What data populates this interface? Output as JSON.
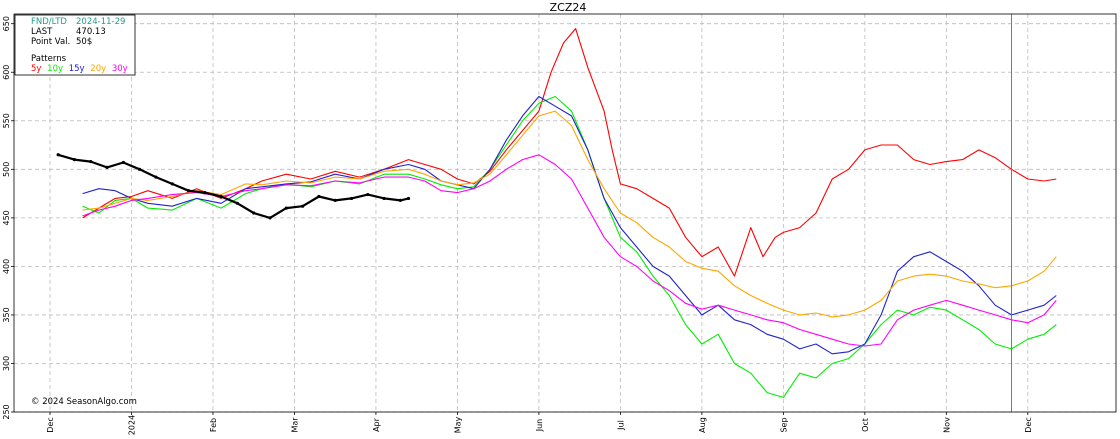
{
  "chart_data": {
    "type": "line",
    "title": "ZCZ24",
    "ylim": [
      250,
      660
    ],
    "yticks": [
      250,
      300,
      350,
      400,
      450,
      500,
      550,
      600,
      650
    ],
    "x_months": [
      "Dec",
      "2024",
      "Feb",
      "Mar",
      "Apr",
      "May",
      "Jun",
      "Jul",
      "Aug",
      "Sep",
      "Oct",
      "Nov",
      "Dec"
    ],
    "xlim": [
      0,
      12.8
    ],
    "grid": true,
    "marker_x": 11.8,
    "info": {
      "fnd_label": "FND/LTD",
      "fnd_value": "2024-11-29",
      "last_label": "LAST",
      "last_value": "470.13",
      "pv_label": "Point Val.",
      "pv_value": "50$",
      "patterns_label": "Patterns"
    },
    "copyright": "© 2024 SeasonAlgo.com",
    "series": [
      {
        "name": "5y",
        "color": "#ff0000",
        "x": [
          0.4,
          0.6,
          0.8,
          1.0,
          1.2,
          1.5,
          1.8,
          2.1,
          2.4,
          2.6,
          2.9,
          3.2,
          3.5,
          3.8,
          4.1,
          4.4,
          4.6,
          4.8,
          5.0,
          5.2,
          5.4,
          5.6,
          5.8,
          6.0,
          6.15,
          6.3,
          6.45,
          6.6,
          6.8,
          6.9,
          7.0,
          7.2,
          7.4,
          7.6,
          7.8,
          8.0,
          8.2,
          8.4,
          8.6,
          8.75,
          8.9,
          9.0,
          9.2,
          9.4,
          9.6,
          9.8,
          9.9,
          10.0,
          10.2,
          10.4,
          10.6,
          10.8,
          11.0,
          11.2,
          11.4,
          11.6,
          11.8,
          12.0,
          12.2,
          12.35
        ],
        "y": [
          450,
          460,
          470,
          472,
          478,
          470,
          480,
          470,
          480,
          488,
          495,
          490,
          498,
          492,
          500,
          510,
          505,
          500,
          490,
          485,
          498,
          520,
          540,
          560,
          600,
          630,
          645,
          605,
          560,
          520,
          485,
          480,
          470,
          460,
          430,
          410,
          420,
          390,
          440,
          410,
          430,
          435,
          440,
          455,
          490,
          500,
          510,
          520,
          525,
          525,
          510,
          505,
          508,
          510,
          520,
          512,
          500,
          490,
          488,
          490
        ]
      },
      {
        "name": "10y",
        "color": "#00ee00",
        "x": [
          0.4,
          0.6,
          0.8,
          1.0,
          1.2,
          1.5,
          1.8,
          2.1,
          2.4,
          2.6,
          2.9,
          3.2,
          3.5,
          3.8,
          4.1,
          4.4,
          4.6,
          4.8,
          5.0,
          5.2,
          5.4,
          5.6,
          5.8,
          6.0,
          6.2,
          6.4,
          6.6,
          6.8,
          7.0,
          7.2,
          7.4,
          7.6,
          7.8,
          8.0,
          8.2,
          8.4,
          8.6,
          8.8,
          9.0,
          9.2,
          9.4,
          9.6,
          9.8,
          10.0,
          10.2,
          10.4,
          10.6,
          10.8,
          11.0,
          11.2,
          11.4,
          11.6,
          11.8,
          12.0,
          12.2,
          12.35
        ],
        "y": [
          462,
          455,
          468,
          470,
          460,
          458,
          470,
          460,
          475,
          480,
          485,
          482,
          488,
          485,
          495,
          495,
          490,
          484,
          480,
          482,
          500,
          525,
          550,
          568,
          575,
          560,
          520,
          470,
          430,
          415,
          390,
          370,
          340,
          320,
          330,
          300,
          290,
          270,
          265,
          290,
          285,
          300,
          305,
          320,
          340,
          355,
          350,
          358,
          355,
          345,
          335,
          320,
          315,
          325,
          330,
          340
        ]
      },
      {
        "name": "15y",
        "color": "#2222cc",
        "x": [
          0.4,
          0.6,
          0.8,
          1.0,
          1.2,
          1.5,
          1.8,
          2.1,
          2.4,
          2.6,
          2.9,
          3.2,
          3.5,
          3.8,
          4.1,
          4.4,
          4.6,
          4.8,
          5.0,
          5.2,
          5.4,
          5.6,
          5.8,
          6.0,
          6.2,
          6.4,
          6.6,
          6.8,
          7.0,
          7.2,
          7.4,
          7.6,
          7.8,
          8.0,
          8.2,
          8.4,
          8.6,
          8.8,
          9.0,
          9.2,
          9.4,
          9.6,
          9.8,
          10.0,
          10.2,
          10.4,
          10.6,
          10.8,
          11.0,
          11.2,
          11.4,
          11.6,
          11.8,
          12.0,
          12.2,
          12.35
        ],
        "y": [
          475,
          480,
          478,
          470,
          465,
          462,
          470,
          465,
          480,
          482,
          485,
          487,
          495,
          490,
          500,
          505,
          500,
          488,
          484,
          480,
          500,
          530,
          555,
          575,
          565,
          555,
          520,
          470,
          440,
          420,
          400,
          390,
          370,
          350,
          360,
          345,
          340,
          330,
          325,
          315,
          320,
          310,
          312,
          320,
          350,
          395,
          410,
          415,
          405,
          395,
          380,
          360,
          350,
          355,
          360,
          370
        ]
      },
      {
        "name": "20y",
        "color": "#ffa500",
        "x": [
          0.4,
          0.6,
          0.8,
          1.0,
          1.2,
          1.5,
          1.8,
          2.1,
          2.4,
          2.6,
          2.9,
          3.2,
          3.5,
          3.8,
          4.1,
          4.4,
          4.6,
          4.8,
          5.0,
          5.2,
          5.4,
          5.6,
          5.8,
          6.0,
          6.2,
          6.4,
          6.6,
          6.8,
          7.0,
          7.2,
          7.4,
          7.6,
          7.8,
          8.0,
          8.2,
          8.4,
          8.6,
          8.8,
          9.0,
          9.2,
          9.4,
          9.6,
          9.8,
          10.0,
          10.2,
          10.4,
          10.6,
          10.8,
          11.0,
          11.2,
          11.4,
          11.6,
          11.8,
          12.0,
          12.2,
          12.35
        ],
        "y": [
          458,
          460,
          465,
          470,
          468,
          472,
          478,
          474,
          485,
          484,
          488,
          486,
          492,
          490,
          498,
          500,
          495,
          488,
          484,
          486,
          495,
          515,
          535,
          555,
          560,
          545,
          510,
          480,
          455,
          445,
          430,
          420,
          405,
          398,
          395,
          380,
          370,
          362,
          355,
          350,
          352,
          348,
          350,
          355,
          365,
          385,
          390,
          392,
          390,
          385,
          382,
          378,
          380,
          385,
          395,
          410
        ]
      },
      {
        "name": "30y",
        "color": "#ff00ff",
        "x": [
          0.4,
          0.6,
          0.8,
          1.0,
          1.2,
          1.5,
          1.8,
          2.1,
          2.4,
          2.6,
          2.9,
          3.2,
          3.5,
          3.8,
          4.1,
          4.4,
          4.6,
          4.8,
          5.0,
          5.2,
          5.4,
          5.6,
          5.8,
          6.0,
          6.2,
          6.4,
          6.6,
          6.8,
          7.0,
          7.2,
          7.4,
          7.6,
          7.8,
          8.0,
          8.2,
          8.4,
          8.6,
          8.8,
          9.0,
          9.2,
          9.4,
          9.6,
          9.8,
          10.0,
          10.2,
          10.4,
          10.6,
          10.8,
          11.0,
          11.2,
          11.4,
          11.6,
          11.8,
          12.0,
          12.2,
          12.35
        ],
        "y": [
          452,
          458,
          462,
          468,
          470,
          474,
          476,
          472,
          478,
          480,
          484,
          483,
          488,
          486,
          492,
          492,
          488,
          478,
          476,
          480,
          488,
          500,
          510,
          515,
          505,
          490,
          460,
          430,
          410,
          400,
          385,
          375,
          362,
          356,
          360,
          355,
          350,
          345,
          342,
          335,
          330,
          325,
          320,
          318,
          320,
          345,
          355,
          360,
          365,
          360,
          355,
          350,
          345,
          342,
          350,
          365
        ]
      },
      {
        "name": "ZCZ24",
        "color": "#000000",
        "x": [
          0.1,
          0.3,
          0.5,
          0.7,
          0.9,
          1.1,
          1.3,
          1.5,
          1.7,
          1.9,
          2.1,
          2.3,
          2.5,
          2.7,
          2.9,
          3.1,
          3.3,
          3.5,
          3.7,
          3.9,
          4.1,
          4.3,
          4.4
        ],
        "y": [
          515,
          510,
          508,
          502,
          507,
          500,
          492,
          485,
          478,
          476,
          472,
          465,
          455,
          450,
          460,
          462,
          472,
          468,
          470,
          474,
          470,
          468,
          470
        ]
      }
    ]
  }
}
